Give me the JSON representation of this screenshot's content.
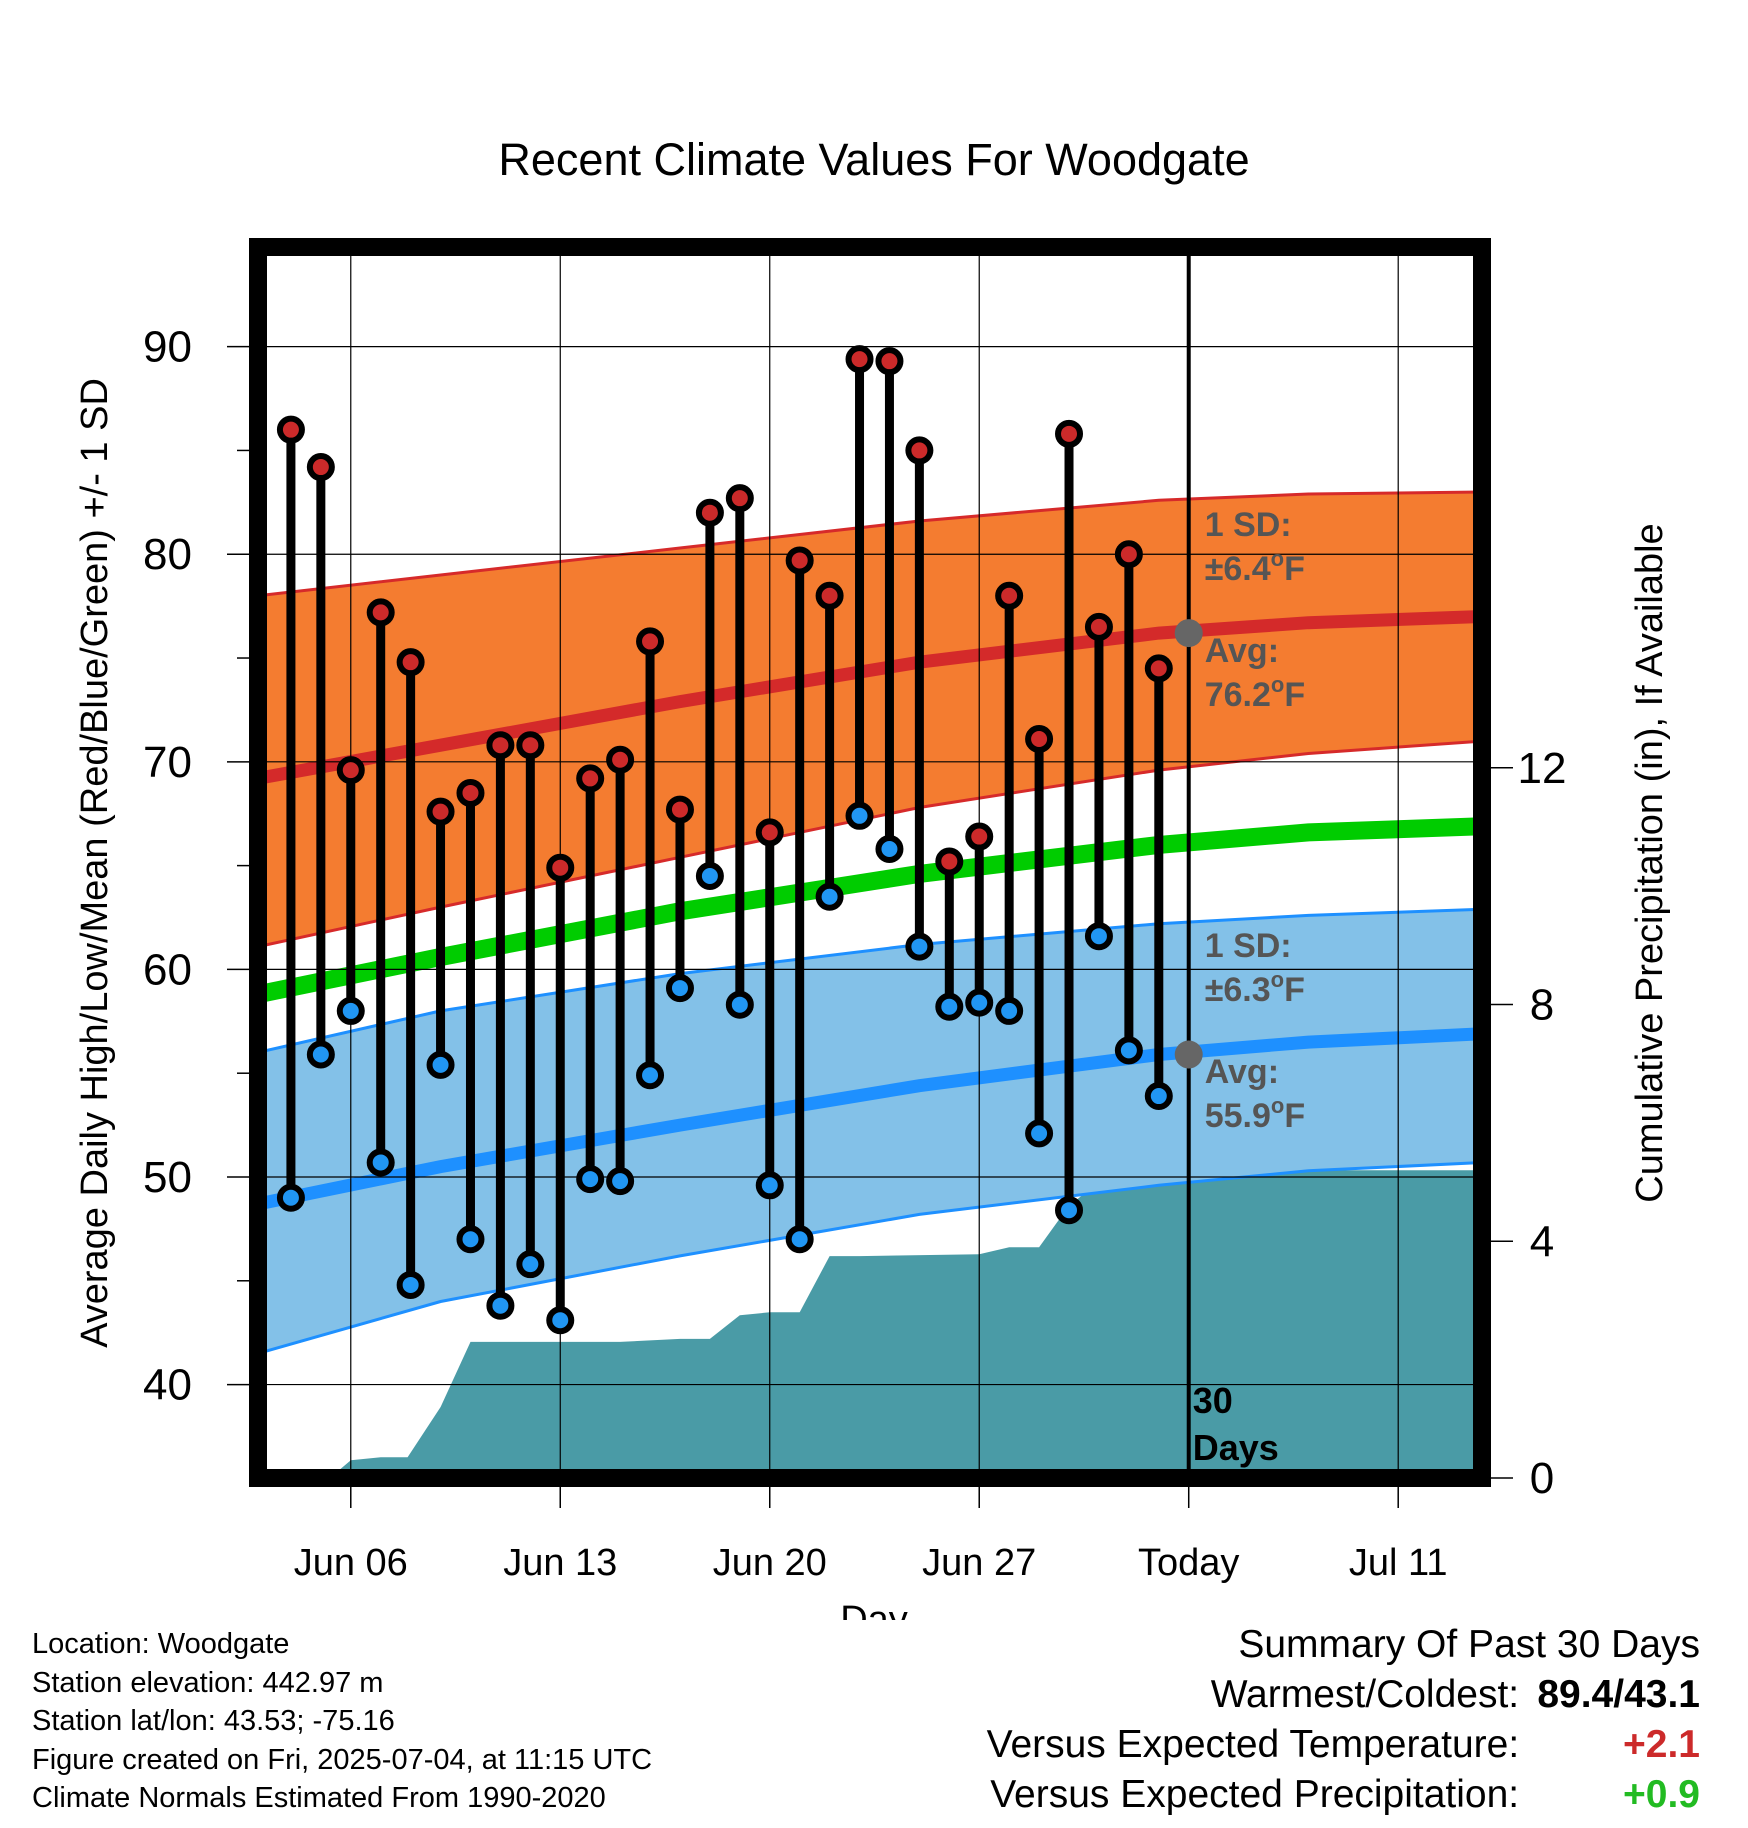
{
  "chart_data": {
    "type": "line",
    "title": "Recent Climate Values For Woodgate",
    "xlabel": "Day",
    "ylabel": "Average Daily High/Low/Mean (Red/Blue/Green) +/- 1 SD",
    "y2label": "Cumulative Precipitation (in), If Available",
    "x_tick_labels": [
      "Jun 06",
      "Jun 13",
      "Jun 20",
      "Jun 27",
      "Today",
      "Jul 11"
    ],
    "x_tick_days": [
      6,
      13,
      20,
      27,
      34,
      41
    ],
    "xlim": [
      2.9,
      43.8
    ],
    "ylim": [
      35.5,
      94.8
    ],
    "y_ticks": [
      40,
      50,
      60,
      70,
      80,
      90
    ],
    "y2lim": [
      0,
      20.8
    ],
    "y2_ticks": [
      0,
      4,
      8,
      12
    ],
    "today_day": 34,
    "today_label": [
      "30",
      "Days"
    ],
    "grid": true,
    "observed": {
      "days": [
        4,
        5,
        6,
        7,
        8,
        9,
        10,
        11,
        12,
        13,
        14,
        15,
        16,
        17,
        18,
        19,
        20,
        21,
        22,
        23,
        24,
        25,
        26,
        27,
        28,
        29,
        30,
        31,
        32,
        33
      ],
      "high": [
        86.0,
        84.2,
        69.6,
        77.2,
        74.8,
        67.6,
        68.5,
        70.8,
        70.8,
        64.9,
        69.2,
        70.1,
        75.8,
        67.7,
        82.0,
        82.7,
        66.6,
        79.7,
        78.0,
        89.4,
        89.3,
        85.0,
        65.2,
        66.4,
        78.0,
        71.1,
        85.8,
        76.5,
        80.0,
        74.5
      ],
      "low": [
        49.0,
        55.9,
        58.0,
        50.7,
        44.8,
        55.4,
        47.0,
        43.8,
        45.8,
        43.1,
        49.9,
        49.8,
        54.9,
        59.1,
        64.5,
        58.3,
        49.6,
        47.0,
        63.5,
        67.4,
        65.8,
        61.1,
        58.2,
        58.4,
        58.0,
        52.1,
        48.4,
        61.6,
        56.1,
        53.9
      ]
    },
    "normals": {
      "days": [
        2.9,
        9,
        17,
        25,
        33,
        38,
        43.8
      ],
      "high_avg": [
        69.2,
        70.8,
        72.9,
        74.8,
        76.2,
        76.7,
        77.0
      ],
      "high_upper": [
        78.0,
        79.0,
        80.3,
        81.6,
        82.6,
        82.9,
        83.0
      ],
      "high_lower": [
        61.1,
        63.0,
        65.4,
        67.8,
        69.6,
        70.4,
        71.0
      ],
      "low_avg": [
        48.7,
        50.5,
        52.5,
        54.4,
        55.9,
        56.5,
        56.9
      ],
      "low_upper": [
        56.0,
        58.0,
        59.8,
        61.2,
        62.2,
        62.6,
        62.9
      ],
      "low_lower": [
        41.5,
        44.0,
        46.2,
        48.2,
        49.6,
        50.3,
        50.7
      ],
      "mean_avg": [
        58.8,
        60.6,
        62.8,
        64.6,
        66.0,
        66.6,
        66.9
      ]
    },
    "precip": {
      "days": [
        5.3,
        6.0,
        7.0,
        7.9,
        9.0,
        10.0,
        11.0,
        15.0,
        17.0,
        18.0,
        19.0,
        20.0,
        21.0,
        22.0,
        23.0,
        27.0,
        28.0,
        29.0,
        30.0,
        31.0,
        32.0,
        33.0,
        34.0,
        43.8
      ],
      "cumulative": [
        0,
        0.3,
        0.35,
        0.35,
        1.2,
        2.3,
        2.3,
        2.3,
        2.35,
        2.35,
        2.75,
        2.8,
        2.8,
        3.75,
        3.75,
        3.78,
        3.9,
        3.9,
        4.6,
        5.0,
        5.0,
        5.2,
        5.2,
        5.2
      ]
    },
    "annotations": {
      "high_sd": [
        "1 SD:",
        "±6.4",
        "F"
      ],
      "high_avg": [
        "Avg:",
        "76.2",
        "F"
      ],
      "low_sd": [
        "1 SD:",
        "±6.3",
        "F"
      ],
      "low_avg": [
        "Avg:",
        "55.9",
        "F"
      ],
      "degree_mark": "o",
      "high_avg_value": 76.2,
      "low_avg_value": 55.9
    },
    "colors": {
      "high_band": "#f47c30",
      "high_line": "#d42a2a",
      "high_edge": "#d62a2a",
      "low_band": "#83c1e8",
      "low_line": "#1e90ff",
      "mean_line": "#00cc00",
      "precip": "#4a9ba6",
      "high_marker": "#cc2a2a",
      "low_marker": "#2196f3",
      "annotation": "#555555",
      "today_dot": "#666666"
    }
  },
  "footer": {
    "location": "Location: Woodgate",
    "elevation": "Station elevation: 442.97 m",
    "latlon": "Station lat/lon: 43.53; -75.16",
    "created": "Figure created on Fri, 2025-07-04, at 11:15 UTC",
    "normals": "Climate Normals Estimated From 1990-2020"
  },
  "summary": {
    "title": "Summary Of Past 30 Days",
    "warmest_label": "Warmest/Coldest:",
    "warmest_value": "89.4/43.1",
    "temp_label": "Versus Expected Temperature:",
    "temp_value": "+2.1",
    "temp_color": "#cc2a2a",
    "precip_label": "Versus Expected Precipitation:",
    "precip_value": "+0.9",
    "precip_color": "#22bb22"
  }
}
